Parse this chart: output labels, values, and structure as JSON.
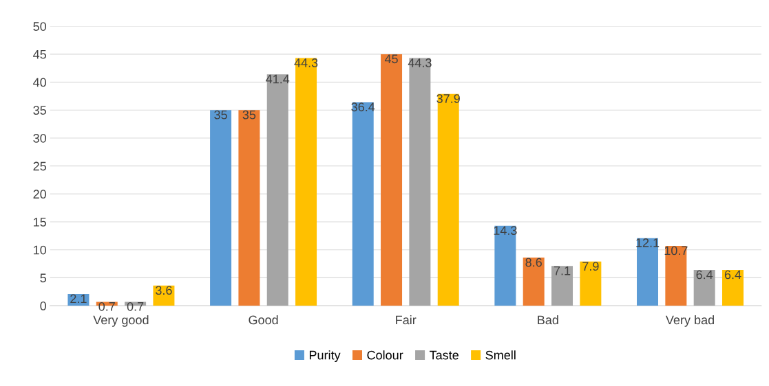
{
  "chart_data": {
    "type": "bar",
    "categories": [
      "Very good",
      "Good",
      "Fair",
      "Bad",
      "Very bad"
    ],
    "series": [
      {
        "name": "Purity",
        "color": "#5b9bd5",
        "values": [
          2.1,
          35,
          36.4,
          14.3,
          12.1
        ]
      },
      {
        "name": "Colour",
        "color": "#ed7d31",
        "values": [
          0.7,
          35,
          45,
          8.6,
          10.7
        ]
      },
      {
        "name": "Taste",
        "color": "#a5a5a5",
        "values": [
          0.7,
          41.4,
          44.3,
          7.1,
          6.4
        ]
      },
      {
        "name": "Smell",
        "color": "#ffc000",
        "values": [
          3.6,
          44.3,
          37.9,
          7.9,
          6.4
        ]
      }
    ],
    "ylim": [
      0,
      50
    ],
    "yticks": [
      0,
      5,
      10,
      15,
      20,
      25,
      30,
      35,
      40,
      45,
      50
    ],
    "grid": "y",
    "legend": "bottom",
    "data_labels": true
  }
}
